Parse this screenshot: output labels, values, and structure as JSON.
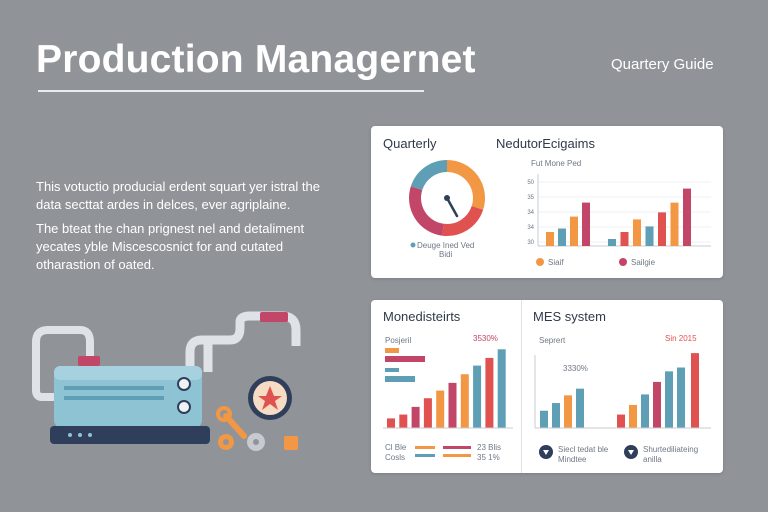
{
  "header": {
    "title": "Production Managernet",
    "subtitle": "Quartery Guide"
  },
  "intro": {
    "paragraph_1": "This votuctio producial erdent squart yer istral the data secttat ardes in delces, ever agriplaine.",
    "paragraph_2": "The bteat the chan prignest nel and detaliment yecates yble Miscescosnict for and cutated otharastion of oated."
  },
  "card_top": {
    "title_left": "Quarterly",
    "title_right": "NedutorEcigaims",
    "chart_caption": "Fut Mone Ped",
    "donut_legend": "Deuge Ined Ved",
    "donut_legend_2": "Bidi",
    "legend_1": "Siaif",
    "legend_2": "Sailgie",
    "ticks": [
      "50",
      "35",
      "34",
      "34",
      "30"
    ]
  },
  "card_bottom": {
    "left_title": "Monedisteirts",
    "left_label": "Posjeril",
    "left_value": "3530%",
    "left_foot_a": "Cl  Ble",
    "left_foot_b": "Cosls",
    "left_foot_c": "23  Blis",
    "left_foot_d": "35  1%",
    "right_title": "MES system",
    "right_label": "Seprert",
    "right_value": "Sin 2015",
    "right_mid": "3330%",
    "right_legend_1": "Siecl tedat ble",
    "right_legend_1b": "Mindtee",
    "right_legend_2": "Shurtediliateing",
    "right_legend_2b": "anilla"
  },
  "colors": {
    "background": "#909499",
    "red": "#e0524f",
    "orange": "#f29844",
    "teal": "#5f9fb6",
    "magenta": "#c24667",
    "navy": "#2f3e5a"
  },
  "chart_data": [
    {
      "type": "pie",
      "values": [
        30,
        22,
        28,
        20
      ],
      "donut": true
    },
    {
      "type": "bar",
      "series": [
        {
          "values": [
            2,
            2.5,
            4.2,
            6.2
          ]
        },
        {
          "values": [
            1,
            2,
            3.8,
            2.8,
            4.8,
            6.2,
            8.2
          ]
        }
      ],
      "ylim": [
        0,
        10
      ]
    },
    {
      "type": "bar",
      "values": [
        1,
        1.4,
        2.2,
        3.1,
        3.9,
        4.7,
        5.6,
        6.5,
        7.3,
        8.2
      ]
    },
    {
      "type": "bar",
      "values": [
        1.8,
        2.6,
        3.4,
        4.1,
        1.4,
        2.4,
        3.5,
        4.8,
        5.9,
        6.3,
        7.8
      ]
    }
  ]
}
